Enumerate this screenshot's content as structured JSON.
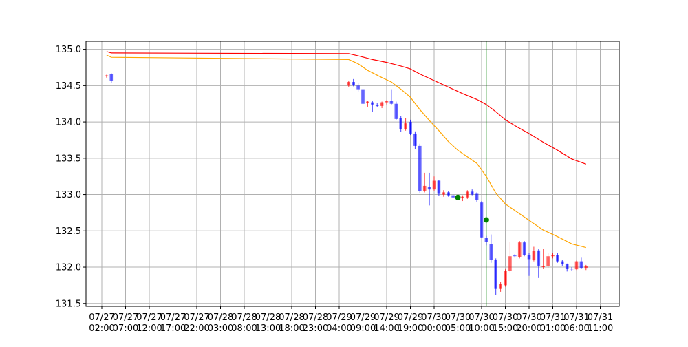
{
  "chart_data": {
    "type": "candlestick",
    "title": "",
    "xlabel": "",
    "ylabel": "",
    "ylim": [
      131.46,
      135.11
    ],
    "grid": true,
    "colors": {
      "up": "#ff0000",
      "down": "#0000ff",
      "ma_fast": "#ffa500",
      "ma_slow": "#ff0000",
      "marker": "#008000",
      "vline": "#008000",
      "grid": "#b0b0b0"
    },
    "y_ticks": [
      {
        "value": 131.5,
        "label": "131.5"
      },
      {
        "value": 132.0,
        "label": "132.0"
      },
      {
        "value": 132.5,
        "label": "132.5"
      },
      {
        "value": 133.0,
        "label": "133.0"
      },
      {
        "value": 133.5,
        "label": "133.5"
      },
      {
        "value": 134.0,
        "label": "134.0"
      },
      {
        "value": 134.5,
        "label": "134.5"
      },
      {
        "value": 135.0,
        "label": "135.0"
      }
    ],
    "x_ticks": [
      {
        "x": "07/27 02:00",
        "date": "07/27",
        "time": "02:00"
      },
      {
        "x": "07/27 07:00",
        "date": "07/27",
        "time": "07:00"
      },
      {
        "x": "07/27 12:00",
        "date": "07/27",
        "time": "12:00"
      },
      {
        "x": "07/27 17:00",
        "date": "07/27",
        "time": "17:00"
      },
      {
        "x": "07/27 22:00",
        "date": "07/27",
        "time": "22:00"
      },
      {
        "x": "07/28 03:00",
        "date": "07/28",
        "time": "03:00"
      },
      {
        "x": "07/28 08:00",
        "date": "07/28",
        "time": "08:00"
      },
      {
        "x": "07/28 13:00",
        "date": "07/28",
        "time": "13:00"
      },
      {
        "x": "07/28 18:00",
        "date": "07/28",
        "time": "18:00"
      },
      {
        "x": "07/28 23:00",
        "date": "07/28",
        "time": "23:00"
      },
      {
        "x": "07/29 04:00",
        "date": "07/29",
        "time": "04:00"
      },
      {
        "x": "07/29 09:00",
        "date": "07/29",
        "time": "09:00"
      },
      {
        "x": "07/29 14:00",
        "date": "07/29",
        "time": "14:00"
      },
      {
        "x": "07/29 19:00",
        "date": "07/29",
        "time": "19:00"
      },
      {
        "x": "07/30 00:00",
        "date": "07/30",
        "time": "00:00"
      },
      {
        "x": "07/30 05:00",
        "date": "07/30",
        "time": "05:00"
      },
      {
        "x": "07/30 10:00",
        "date": "07/30",
        "time": "10:00"
      },
      {
        "x": "07/30 15:00",
        "date": "07/30",
        "time": "15:00"
      },
      {
        "x": "07/30 20:00",
        "date": "07/30",
        "time": "20:00"
      },
      {
        "x": "07/31 01:00",
        "date": "07/31",
        "time": "01:00"
      },
      {
        "x": "07/31 06:00",
        "date": "07/31",
        "time": "06:00"
      },
      {
        "x": "07/31 11:00",
        "date": "07/31",
        "time": "11:00"
      }
    ],
    "candles": [
      {
        "x": "07/27 03:00",
        "o": 134.63,
        "h": 134.65,
        "l": 134.61,
        "c": 134.64
      },
      {
        "x": "07/27 04:00",
        "o": 134.66,
        "h": 134.67,
        "l": 134.54,
        "c": 134.57
      },
      {
        "x": "07/29 06:00",
        "o": 134.5,
        "h": 134.57,
        "l": 134.48,
        "c": 134.55
      },
      {
        "x": "07/29 07:00",
        "o": 134.55,
        "h": 134.59,
        "l": 134.49,
        "c": 134.51
      },
      {
        "x": "07/29 08:00",
        "o": 134.5,
        "h": 134.54,
        "l": 134.42,
        "c": 134.45
      },
      {
        "x": "07/29 09:00",
        "o": 134.45,
        "h": 134.47,
        "l": 134.22,
        "c": 134.25
      },
      {
        "x": "07/29 10:00",
        "o": 134.26,
        "h": 134.29,
        "l": 134.21,
        "c": 134.28
      },
      {
        "x": "07/29 11:00",
        "o": 134.27,
        "h": 134.29,
        "l": 134.14,
        "c": 134.24
      },
      {
        "x": "07/29 12:00",
        "o": 134.23,
        "h": 134.26,
        "l": 134.2,
        "c": 134.22
      },
      {
        "x": "07/29 13:00",
        "o": 134.22,
        "h": 134.28,
        "l": 134.19,
        "c": 134.27
      },
      {
        "x": "07/29 14:00",
        "o": 134.27,
        "h": 134.3,
        "l": 134.24,
        "c": 134.29
      },
      {
        "x": "07/29 15:00",
        "o": 134.29,
        "h": 134.45,
        "l": 134.24,
        "c": 134.25
      },
      {
        "x": "07/29 16:00",
        "o": 134.25,
        "h": 134.28,
        "l": 134.02,
        "c": 134.04
      },
      {
        "x": "07/29 17:00",
        "o": 134.05,
        "h": 134.08,
        "l": 133.86,
        "c": 133.9
      },
      {
        "x": "07/29 18:00",
        "o": 133.9,
        "h": 134.05,
        "l": 133.88,
        "c": 133.98
      },
      {
        "x": "07/29 19:00",
        "o": 134.0,
        "h": 134.03,
        "l": 133.82,
        "c": 133.84
      },
      {
        "x": "07/29 20:00",
        "o": 133.84,
        "h": 133.87,
        "l": 133.63,
        "c": 133.67
      },
      {
        "x": "07/29 21:00",
        "o": 133.67,
        "h": 133.7,
        "l": 133.02,
        "c": 133.05
      },
      {
        "x": "07/29 22:00",
        "o": 133.05,
        "h": 133.3,
        "l": 133.03,
        "c": 133.12
      },
      {
        "x": "07/29 23:00",
        "o": 133.1,
        "h": 133.3,
        "l": 132.85,
        "c": 133.07
      },
      {
        "x": "07/30 00:00",
        "o": 133.07,
        "h": 133.25,
        "l": 133.05,
        "c": 133.19
      },
      {
        "x": "07/30 01:00",
        "o": 133.19,
        "h": 133.2,
        "l": 132.98,
        "c": 133.01
      },
      {
        "x": "07/30 02:00",
        "o": 133.0,
        "h": 133.06,
        "l": 132.97,
        "c": 133.03
      },
      {
        "x": "07/30 03:00",
        "o": 133.03,
        "h": 133.05,
        "l": 132.97,
        "c": 132.99
      },
      {
        "x": "07/30 04:00",
        "o": 132.99,
        "h": 133.0,
        "l": 132.95,
        "c": 132.96
      },
      {
        "x": "07/30 05:00",
        "o": 132.97,
        "h": 133.0,
        "l": 132.92,
        "c": 132.95
      },
      {
        "x": "07/30 06:00",
        "o": 132.95,
        "h": 132.99,
        "l": 132.91,
        "c": 132.97
      },
      {
        "x": "07/30 07:00",
        "o": 132.96,
        "h": 133.06,
        "l": 132.94,
        "c": 133.04
      },
      {
        "x": "07/30 08:00",
        "o": 133.04,
        "h": 133.07,
        "l": 132.99,
        "c": 133.0
      },
      {
        "x": "07/30 09:00",
        "o": 133.01,
        "h": 133.03,
        "l": 132.9,
        "c": 132.92
      },
      {
        "x": "07/30 10:00",
        "o": 132.89,
        "h": 132.91,
        "l": 132.4,
        "c": 132.41
      },
      {
        "x": "07/30 11:00",
        "o": 132.4,
        "h": 132.43,
        "l": 132.3,
        "c": 132.35
      },
      {
        "x": "07/30 12:00",
        "o": 132.32,
        "h": 132.45,
        "l": 132.06,
        "c": 132.1
      },
      {
        "x": "07/30 13:00",
        "o": 132.1,
        "h": 132.12,
        "l": 131.62,
        "c": 131.7
      },
      {
        "x": "07/30 14:00",
        "o": 131.7,
        "h": 131.8,
        "l": 131.66,
        "c": 131.77
      },
      {
        "x": "07/30 15:00",
        "o": 131.75,
        "h": 131.97,
        "l": 131.73,
        "c": 131.95
      },
      {
        "x": "07/30 16:00",
        "o": 131.95,
        "h": 132.35,
        "l": 131.93,
        "c": 132.15
      },
      {
        "x": "07/30 17:00",
        "o": 132.16,
        "h": 132.18,
        "l": 132.13,
        "c": 132.15
      },
      {
        "x": "07/30 18:00",
        "o": 132.14,
        "h": 132.36,
        "l": 132.12,
        "c": 132.34
      },
      {
        "x": "07/30 19:00",
        "o": 132.34,
        "h": 132.36,
        "l": 132.15,
        "c": 132.17
      },
      {
        "x": "07/30 20:00",
        "o": 132.17,
        "h": 132.2,
        "l": 131.88,
        "c": 132.11
      },
      {
        "x": "07/30 21:00",
        "o": 132.1,
        "h": 132.28,
        "l": 132.08,
        "c": 132.22
      },
      {
        "x": "07/30 22:00",
        "o": 132.23,
        "h": 132.25,
        "l": 131.85,
        "c": 132.02
      },
      {
        "x": "07/30 23:00",
        "o": 132.0,
        "h": 132.25,
        "l": 131.98,
        "c": 132.01
      },
      {
        "x": "07/31 00:00",
        "o": 132.01,
        "h": 132.2,
        "l": 131.99,
        "c": 132.15
      },
      {
        "x": "07/31 01:00",
        "o": 132.15,
        "h": 132.2,
        "l": 132.12,
        "c": 132.17
      },
      {
        "x": "07/31 02:00",
        "o": 132.17,
        "h": 132.19,
        "l": 132.06,
        "c": 132.08
      },
      {
        "x": "07/31 03:00",
        "o": 132.08,
        "h": 132.1,
        "l": 132.02,
        "c": 132.04
      },
      {
        "x": "07/31 04:00",
        "o": 132.04,
        "h": 132.05,
        "l": 131.94,
        "c": 131.98
      },
      {
        "x": "07/31 05:00",
        "o": 131.98,
        "h": 132.0,
        "l": 131.95,
        "c": 131.97
      },
      {
        "x": "07/31 06:00",
        "o": 131.97,
        "h": 132.09,
        "l": 131.96,
        "c": 132.08
      },
      {
        "x": "07/31 07:00",
        "o": 132.08,
        "h": 132.13,
        "l": 131.98,
        "c": 131.99
      },
      {
        "x": "07/31 08:00",
        "o": 131.99,
        "h": 132.03,
        "l": 131.96,
        "c": 132.01
      }
    ],
    "series": [
      {
        "color": "#ff0000",
        "points": [
          {
            "x": "07/27 03:00",
            "y": 134.97
          },
          {
            "x": "07/27 04:00",
            "y": 134.95
          },
          {
            "x": "07/29 06:00",
            "y": 134.94
          },
          {
            "x": "07/29 08:00",
            "y": 134.91
          },
          {
            "x": "07/29 11:00",
            "y": 134.86
          },
          {
            "x": "07/29 14:00",
            "y": 134.82
          },
          {
            "x": "07/29 17:00",
            "y": 134.77
          },
          {
            "x": "07/29 19:00",
            "y": 134.73
          },
          {
            "x": "07/29 21:00",
            "y": 134.66
          },
          {
            "x": "07/30 00:00",
            "y": 134.57
          },
          {
            "x": "07/30 03:00",
            "y": 134.48
          },
          {
            "x": "07/30 06:00",
            "y": 134.39
          },
          {
            "x": "07/30 09:00",
            "y": 134.31
          },
          {
            "x": "07/30 11:00",
            "y": 134.24
          },
          {
            "x": "07/30 13:00",
            "y": 134.14
          },
          {
            "x": "07/30 15:00",
            "y": 134.03
          },
          {
            "x": "07/30 17:00",
            "y": 133.95
          },
          {
            "x": "07/30 20:00",
            "y": 133.84
          },
          {
            "x": "07/30 23:00",
            "y": 133.72
          },
          {
            "x": "07/31 02:00",
            "y": 133.61
          },
          {
            "x": "07/31 05:00",
            "y": 133.49
          },
          {
            "x": "07/31 08:00",
            "y": 133.42
          }
        ]
      },
      {
        "color": "#ffa500",
        "points": [
          {
            "x": "07/27 03:00",
            "y": 134.92
          },
          {
            "x": "07/27 04:00",
            "y": 134.89
          },
          {
            "x": "07/29 06:00",
            "y": 134.86
          },
          {
            "x": "07/29 08:00",
            "y": 134.8
          },
          {
            "x": "07/29 10:00",
            "y": 134.71
          },
          {
            "x": "07/29 13:00",
            "y": 134.61
          },
          {
            "x": "07/29 15:00",
            "y": 134.55
          },
          {
            "x": "07/29 17:00",
            "y": 134.45
          },
          {
            "x": "07/29 19:00",
            "y": 134.34
          },
          {
            "x": "07/29 21:00",
            "y": 134.17
          },
          {
            "x": "07/29 23:00",
            "y": 134.02
          },
          {
            "x": "07/30 01:00",
            "y": 133.88
          },
          {
            "x": "07/30 03:00",
            "y": 133.73
          },
          {
            "x": "07/30 05:00",
            "y": 133.61
          },
          {
            "x": "07/30 07:00",
            "y": 133.52
          },
          {
            "x": "07/30 09:00",
            "y": 133.43
          },
          {
            "x": "07/30 11:00",
            "y": 133.25
          },
          {
            "x": "07/30 13:00",
            "y": 133.02
          },
          {
            "x": "07/30 15:00",
            "y": 132.87
          },
          {
            "x": "07/30 17:00",
            "y": 132.78
          },
          {
            "x": "07/30 19:00",
            "y": 132.69
          },
          {
            "x": "07/30 21:00",
            "y": 132.6
          },
          {
            "x": "07/30 23:00",
            "y": 132.51
          },
          {
            "x": "07/31 02:00",
            "y": 132.42
          },
          {
            "x": "07/31 05:00",
            "y": 132.32
          },
          {
            "x": "07/31 08:00",
            "y": 132.27
          }
        ]
      }
    ],
    "markers": [
      {
        "x": "07/30 05:00",
        "y": 132.96
      },
      {
        "x": "07/30 11:00",
        "y": 132.65
      }
    ],
    "vlines": [
      "07/30 05:00",
      "07/30 11:00"
    ]
  }
}
